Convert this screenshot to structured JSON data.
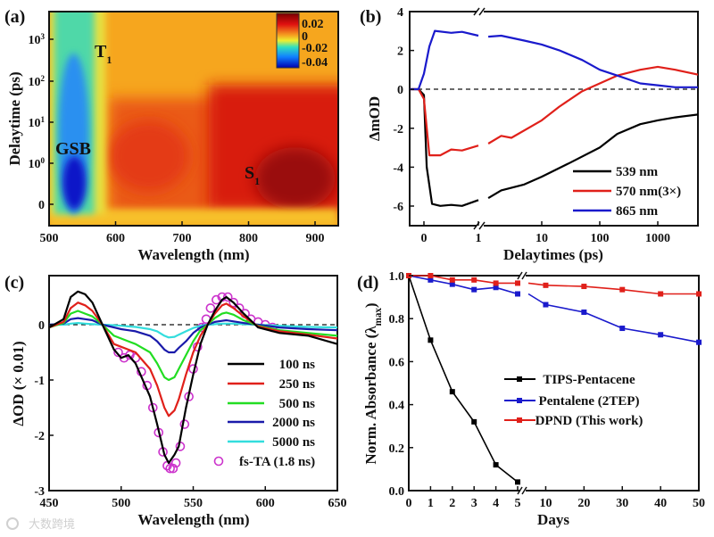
{
  "watermark": {
    "text": "大数跨境"
  },
  "chart_data": [
    {
      "panel": "(a)",
      "type": "heatmap",
      "xlabel": "Wavelength (nm)",
      "ylabel": "Delaytime (ps)",
      "xlim": [
        500,
        930
      ],
      "xticks": [
        "500",
        "600",
        "700",
        "800",
        "900"
      ],
      "yticks": [
        {
          "base": "0",
          "exp": ""
        },
        {
          "base": "10",
          "exp": "0"
        },
        {
          "base": "10",
          "exp": "1"
        },
        {
          "base": "10",
          "exp": "2"
        },
        {
          "base": "10",
          "exp": "3"
        }
      ],
      "colorbar": {
        "ticks": [
          "0.02",
          "0",
          "-0.02",
          "-0.04"
        ],
        "range": [
          -0.045,
          0.025
        ]
      },
      "annotations": [
        {
          "main": "T",
          "sub": "1"
        },
        {
          "main": "GSB",
          "sub": ""
        },
        {
          "main": "S",
          "sub": "1"
        }
      ]
    },
    {
      "panel": "(b)",
      "type": "line",
      "xlabel": "Delaytimes (ps)",
      "ylabel": "ΔmOD",
      "ylim": [
        -7,
        4
      ],
      "xscale": "linear (-0.3 to 1) then log (1 to 5000), axis break at 1",
      "xticks": [
        "0",
        "1",
        "10",
        "100",
        "1000"
      ],
      "yticks": [
        "4",
        "2",
        "0",
        "-2",
        "-4",
        "-6"
      ],
      "legend_position": "bottom-right",
      "series": [
        {
          "name": "539 nm",
          "color": "#000000",
          "x": [
            -0.3,
            -0.1,
            0,
            0.05,
            0.15,
            0.3,
            0.5,
            0.7,
            1,
            1.2,
            2,
            5,
            10,
            30,
            100,
            200,
            500,
            1000,
            2000,
            5000
          ],
          "y": [
            0,
            0,
            -0.3,
            -4,
            -5.9,
            -6.0,
            -5.95,
            -6.0,
            -5.7,
            -5.6,
            -5.2,
            -4.9,
            -4.5,
            -3.8,
            -3.0,
            -2.3,
            -1.8,
            -1.6,
            -1.45,
            -1.3
          ]
        },
        {
          "name": "570 nm(3×)",
          "color": "#e0201a",
          "x": [
            -0.3,
            -0.1,
            0,
            0.1,
            0.3,
            0.5,
            0.7,
            1,
            1.2,
            2,
            3,
            10,
            20,
            50,
            100,
            200,
            500,
            1000,
            2000,
            5000
          ],
          "y": [
            0,
            0,
            -0.5,
            -3.4,
            -3.4,
            -3.1,
            -3.15,
            -2.9,
            -2.8,
            -2.4,
            -2.5,
            -1.6,
            -0.9,
            -0.1,
            0.3,
            0.7,
            1.0,
            1.15,
            1.0,
            0.75
          ]
        },
        {
          "name": "865 nm",
          "color": "#1a1acc",
          "x": [
            -0.3,
            -0.1,
            0,
            0.1,
            0.2,
            0.5,
            0.7,
            1,
            1.2,
            2,
            5,
            10,
            20,
            50,
            100,
            200,
            500,
            1000,
            2000,
            5000
          ],
          "y": [
            0,
            0,
            0.8,
            2.2,
            3.0,
            2.9,
            2.95,
            2.75,
            2.7,
            2.75,
            2.5,
            2.3,
            2.0,
            1.5,
            1.0,
            0.7,
            0.3,
            0.2,
            0.1,
            0.1
          ]
        }
      ]
    },
    {
      "panel": "(c)",
      "type": "line",
      "xlabel": "Wavelength (nm)",
      "ylabel": "ΔOD (× 0.01)",
      "xlim": [
        450,
        650
      ],
      "ylim": [
        -3,
        0.9
      ],
      "xticks": [
        "450",
        "500",
        "550",
        "600",
        "650"
      ],
      "yticks": [
        "0",
        "-1",
        "-2",
        "-3"
      ],
      "legend_position": "bottom-right",
      "x": [
        450,
        460,
        465,
        470,
        475,
        480,
        487,
        495,
        500,
        505,
        510,
        520,
        525,
        530,
        533,
        537,
        540,
        545,
        550,
        555,
        560,
        565,
        570,
        573,
        578,
        585,
        595,
        610,
        630,
        650
      ],
      "series": [
        {
          "name": "100 ns",
          "color": "#000000",
          "y": [
            -0.05,
            0.1,
            0.5,
            0.6,
            0.55,
            0.4,
            0,
            -0.45,
            -0.6,
            -0.55,
            -0.7,
            -1.3,
            -1.8,
            -2.35,
            -2.5,
            -2.35,
            -2.2,
            -1.5,
            -0.9,
            -0.35,
            0,
            0.25,
            0.45,
            0.5,
            0.4,
            0.2,
            -0.05,
            -0.15,
            -0.2,
            -0.35
          ]
        },
        {
          "name": "250 ns",
          "color": "#e0201a",
          "y": [
            -0.05,
            0.05,
            0.3,
            0.4,
            0.35,
            0.25,
            0,
            -0.35,
            -0.4,
            -0.45,
            -0.5,
            -0.8,
            -1.1,
            -1.5,
            -1.65,
            -1.55,
            -1.35,
            -0.9,
            -0.5,
            -0.2,
            0,
            0.2,
            0.35,
            0.38,
            0.3,
            0.15,
            -0.03,
            -0.12,
            -0.18,
            -0.25
          ]
        },
        {
          "name": "500 ns",
          "color": "#22dd22",
          "y": [
            -0.05,
            0.03,
            0.2,
            0.25,
            0.2,
            0.15,
            0,
            -0.2,
            -0.25,
            -0.3,
            -0.35,
            -0.5,
            -0.7,
            -0.95,
            -1.0,
            -0.95,
            -0.8,
            -0.55,
            -0.3,
            -0.1,
            0,
            0.12,
            0.2,
            0.22,
            0.18,
            0.08,
            -0.02,
            -0.1,
            -0.15,
            -0.2
          ]
        },
        {
          "name": "2000 ns",
          "color": "#1a1aaa",
          "y": [
            0,
            0.02,
            0.1,
            0.12,
            0.1,
            0.08,
            0,
            -0.05,
            -0.08,
            -0.1,
            -0.12,
            -0.2,
            -0.3,
            -0.45,
            -0.5,
            -0.5,
            -0.42,
            -0.3,
            -0.15,
            -0.05,
            0,
            0.05,
            0.07,
            0.08,
            0.06,
            0.03,
            0,
            -0.05,
            -0.08,
            -0.1
          ]
        },
        {
          "name": "5000 ns",
          "color": "#33dddd",
          "y": [
            0,
            0,
            0.02,
            0.03,
            0.02,
            0.01,
            0,
            -0.01,
            -0.02,
            -0.03,
            -0.04,
            -0.08,
            -0.12,
            -0.2,
            -0.23,
            -0.22,
            -0.18,
            -0.12,
            -0.06,
            -0.02,
            0,
            0.01,
            0.02,
            0.02,
            0.02,
            0.01,
            0,
            -0.02,
            -0.04,
            -0.05
          ]
        }
      ],
      "scatter": {
        "name": "fs-TA (1.8 ns)",
        "color": "#cc33cc",
        "x": [
          498,
          502,
          506,
          510,
          514,
          518,
          522,
          526,
          529,
          532,
          534,
          536,
          538,
          541,
          544,
          547,
          550,
          553,
          556,
          559,
          562,
          566,
          570,
          574,
          578,
          582,
          586,
          590,
          595,
          600,
          605
        ],
        "y": [
          -0.5,
          -0.6,
          -0.55,
          -0.6,
          -0.85,
          -1.1,
          -1.5,
          -1.95,
          -2.3,
          -2.55,
          -2.6,
          -2.6,
          -2.5,
          -2.2,
          -1.8,
          -1.3,
          -0.8,
          -0.4,
          -0.05,
          0.1,
          0.3,
          0.45,
          0.5,
          0.5,
          0.4,
          0.3,
          0.2,
          0.1,
          0.05,
          0,
          -0.05
        ]
      }
    },
    {
      "panel": "(d)",
      "type": "line",
      "xlabel": "Days",
      "ylabel": {
        "prefix": "Norm. Absorbance (λ",
        "sub": "max",
        "suffix": ")"
      },
      "ylim": [
        0,
        1.0
      ],
      "xscale": "0–5 then 5–50 with axis break",
      "xticks": [
        "0",
        "1",
        "2",
        "3",
        "4",
        "5",
        "10",
        "20",
        "30",
        "40",
        "50"
      ],
      "yticks": [
        "1.0",
        "0.8",
        "0.6",
        "0.4",
        "0.2",
        "0.0"
      ],
      "legend_position": "center-right",
      "series": [
        {
          "name": "TIPS-Pentacene",
          "color": "#000000",
          "x": [
            0,
            1,
            2,
            3,
            4,
            5
          ],
          "y": [
            1.0,
            0.7,
            0.46,
            0.32,
            0.12,
            0.04
          ]
        },
        {
          "name": "Pentalene (2TEP)",
          "color": "#1a1acc",
          "x": [
            0,
            1,
            2,
            3,
            4,
            5,
            10,
            20,
            30,
            40,
            50
          ],
          "y": [
            1.0,
            0.98,
            0.96,
            0.935,
            0.945,
            0.915,
            0.865,
            0.83,
            0.755,
            0.725,
            0.69
          ]
        },
        {
          "name": "DPND (This work)",
          "color": "#e0201a",
          "x": [
            0,
            1,
            2,
            3,
            4,
            5,
            10,
            20,
            30,
            40,
            50
          ],
          "y": [
            1.0,
            1.0,
            0.98,
            0.98,
            0.965,
            0.965,
            0.955,
            0.95,
            0.935,
            0.915,
            0.915
          ]
        }
      ]
    }
  ]
}
